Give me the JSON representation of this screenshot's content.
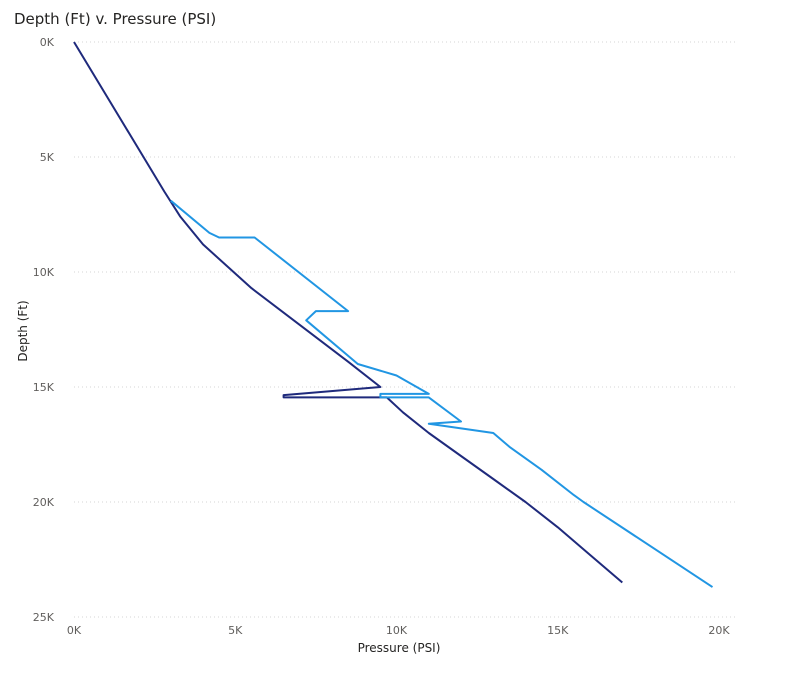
{
  "chart_data": {
    "type": "line",
    "title": "Depth (Ft) v. Pressure (PSI)",
    "xlabel": "Pressure (PSI)",
    "ylabel": "Depth (Ft)",
    "xlim": [
      0,
      20000
    ],
    "ylim": [
      25000,
      0
    ],
    "x_ticks": [
      "0K",
      "5K",
      "10K",
      "15K",
      "20K"
    ],
    "y_ticks": [
      "0K",
      "5K",
      "10K",
      "15K",
      "20K",
      "25K"
    ],
    "grid": true,
    "legend": "none",
    "series": [
      {
        "color": "#1f2a7c",
        "points": [
          [
            0,
            0
          ],
          [
            2800,
            6500
          ],
          [
            3300,
            7600
          ],
          [
            4000,
            8800
          ],
          [
            5500,
            10700
          ],
          [
            7000,
            12300
          ],
          [
            8500,
            13900
          ],
          [
            9500,
            15000
          ],
          [
            6500,
            15350
          ],
          [
            6500,
            15450
          ],
          [
            9700,
            15450
          ],
          [
            10200,
            16100
          ],
          [
            11000,
            17000
          ],
          [
            12000,
            18000
          ],
          [
            13000,
            19000
          ],
          [
            14000,
            20000
          ],
          [
            15000,
            21100
          ],
          [
            16000,
            22300
          ],
          [
            17000,
            23500
          ]
        ]
      },
      {
        "color": "#2196e3",
        "points": [
          [
            3000,
            6900
          ],
          [
            4200,
            8300
          ],
          [
            4500,
            8500
          ],
          [
            5600,
            8500
          ],
          [
            8500,
            11700
          ],
          [
            7500,
            11700
          ],
          [
            7200,
            12100
          ],
          [
            8800,
            14000
          ],
          [
            10000,
            14500
          ],
          [
            11000,
            15300
          ],
          [
            9500,
            15300
          ],
          [
            9500,
            15450
          ],
          [
            11000,
            15450
          ],
          [
            12000,
            16500
          ],
          [
            11000,
            16600
          ],
          [
            13000,
            17000
          ],
          [
            13500,
            17600
          ],
          [
            14500,
            18600
          ],
          [
            15500,
            19700
          ],
          [
            15800,
            20000
          ],
          [
            19800,
            23700
          ]
        ]
      }
    ]
  }
}
